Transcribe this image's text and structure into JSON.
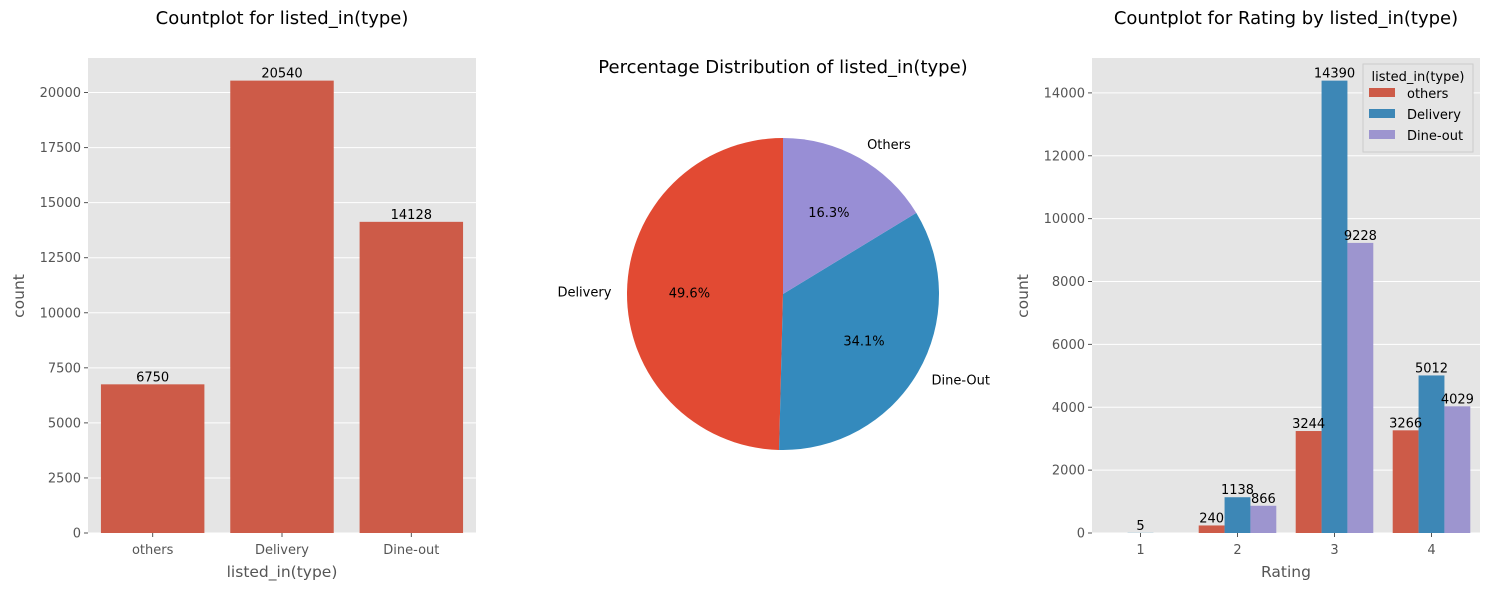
{
  "chart_data": [
    {
      "type": "bar",
      "title": "Countplot for listed_in(type)",
      "xlabel": "listed_in(type)",
      "ylabel": "count",
      "categories": [
        "others",
        "Delivery",
        "Dine-out"
      ],
      "values": [
        6750,
        20540,
        14128
      ],
      "data_labels": [
        "6750",
        "20540",
        "14128"
      ],
      "ylim": [
        0,
        21567
      ],
      "yticks": [
        0,
        2500,
        5000,
        7500,
        10000,
        12500,
        15000,
        17500,
        20000
      ],
      "ytick_labels": [
        "0",
        "2500",
        "5000",
        "7500",
        "10000",
        "12500",
        "15000",
        "17500",
        "20000"
      ],
      "grid": true,
      "color": "#cd5b48"
    },
    {
      "type": "pie",
      "title": "Percentage Distribution of listed_in(type)",
      "labels": [
        "Delivery",
        "Dine-Out",
        "Others"
      ],
      "values": [
        49.6,
        34.1,
        16.3
      ],
      "pct_labels": [
        "49.6%",
        "34.1%",
        "16.3%"
      ],
      "colors": [
        "#e24a33",
        "#348abd",
        "#988ed5"
      ],
      "start_angle": 90
    },
    {
      "type": "bar",
      "title": "Countplot for Rating by listed_in(type)",
      "xlabel": "Rating",
      "ylabel": "count",
      "categories": [
        "1",
        "2",
        "3",
        "4"
      ],
      "series": [
        {
          "name": "others",
          "values": [
            0,
            240,
            3244,
            3266
          ],
          "labels": [
            "",
            "240",
            "3244",
            "3266"
          ],
          "color": "#cd5b48"
        },
        {
          "name": "Delivery",
          "values": [
            5,
            1138,
            14390,
            5012
          ],
          "labels": [
            "5",
            "1138",
            "14390",
            "5012"
          ],
          "color": "#3d87b6"
        },
        {
          "name": "Dine-out",
          "values": [
            0,
            866,
            9228,
            4029
          ],
          "labels": [
            "",
            "866",
            "9228",
            "4029"
          ],
          "color": "#9d95cf"
        }
      ],
      "ylim": [
        0,
        15110
      ],
      "yticks": [
        0,
        2000,
        4000,
        6000,
        8000,
        10000,
        12000,
        14000
      ],
      "ytick_labels": [
        "0",
        "2000",
        "4000",
        "6000",
        "8000",
        "10000",
        "12000",
        "14000"
      ],
      "legend_title": "listed_in(type)",
      "legend_position": "top-right",
      "grid": true
    }
  ]
}
